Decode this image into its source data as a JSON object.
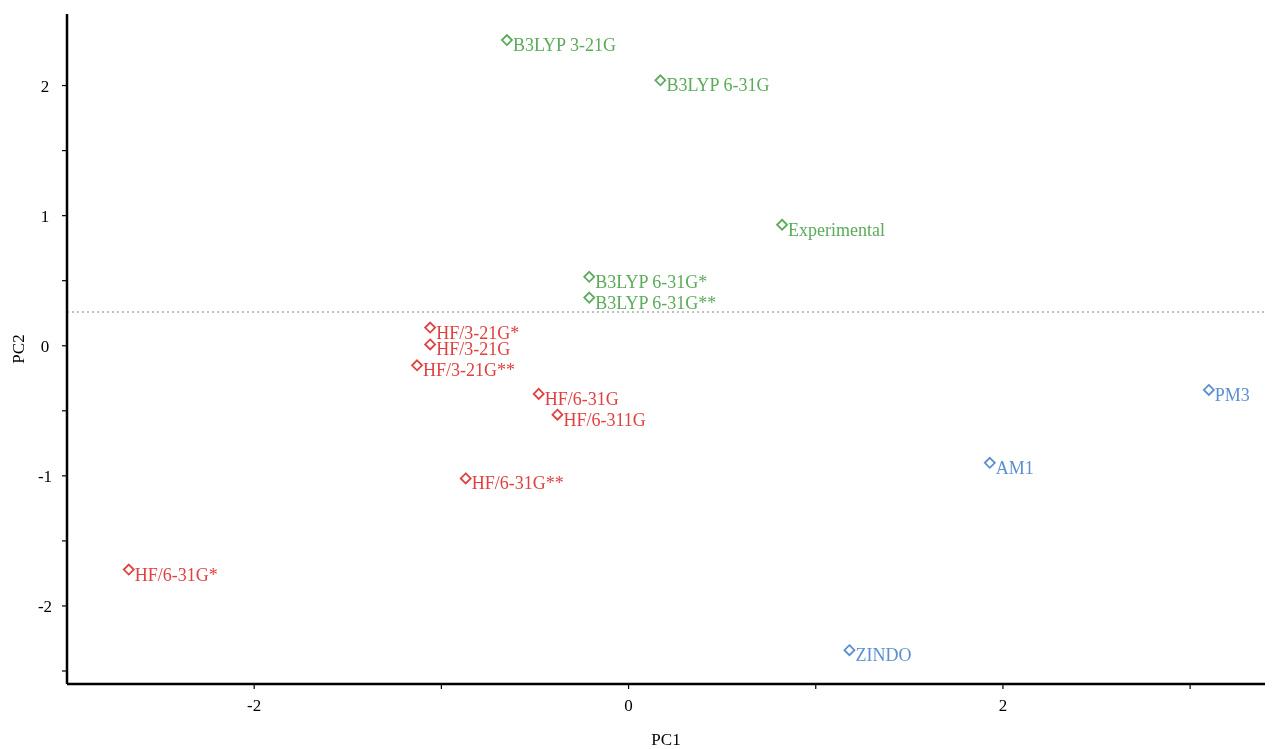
{
  "chart_data": {
    "type": "scatter",
    "xlabel": "PC1",
    "ylabel": "PC2",
    "xlim": [
      -3,
      3.4
    ],
    "ylim": [
      -2.6,
      2.55
    ],
    "xticks": [
      -2,
      {
        "value": -1,
        "label": null
      },
      0,
      {
        "value": 1,
        "label": null
      },
      2,
      {
        "value": 3,
        "label": null
      }
    ],
    "yticks": [
      {
        "value": -2.5,
        "label": null
      },
      -2,
      {
        "value": -1.5,
        "label": null
      },
      -1,
      {
        "value": -0.5,
        "label": null
      },
      0,
      {
        "value": 0.5,
        "label": null
      },
      1,
      {
        "value": 1.5,
        "label": null
      },
      2
    ],
    "marker": "diamond",
    "ref_lines": [
      {
        "axis": "y",
        "value": 0.26,
        "color": "#aaaaaa",
        "line_style": "dotted"
      }
    ],
    "series": [
      {
        "color": "#5aab5a",
        "x": [
          -0.65,
          0.17,
          0.82,
          -0.21,
          -0.21
        ],
        "values": [
          2.35,
          2.04,
          0.93,
          0.53,
          0.37
        ]
      },
      {
        "color": "#e04040",
        "x": [
          -1.06,
          -1.06,
          -1.13,
          -0.48,
          -0.38,
          -0.87,
          -2.67
        ],
        "values": [
          0.14,
          0.01,
          -0.15,
          -0.37,
          -0.53,
          -1.02,
          -1.72
        ]
      },
      {
        "color": "#5b8fd0",
        "x": [
          3.1,
          1.93,
          1.18
        ],
        "values": [
          -0.34,
          -0.9,
          -2.34
        ]
      }
    ],
    "annotations": [
      {
        "text": "B3LYP 3-21G",
        "x": -0.65,
        "y": 2.35
      },
      {
        "text": "B3LYP 6-31G",
        "x": 0.17,
        "y": 2.04
      },
      {
        "text": "Experimental",
        "x": 0.82,
        "y": 0.93
      },
      {
        "text": "B3LYP 6-31G*",
        "x": -0.21,
        "y": 0.53
      },
      {
        "text": "B3LYP 6-31G**",
        "x": -0.21,
        "y": 0.37
      },
      {
        "text": "HF/3-21G*",
        "x": -1.06,
        "y": 0.14
      },
      {
        "text": "HF/3-21G",
        "x": -1.06,
        "y": 0.01
      },
      {
        "text": "HF/3-21G**",
        "x": -1.13,
        "y": -0.15
      },
      {
        "text": "HF/6-31G",
        "x": -0.48,
        "y": -0.37
      },
      {
        "text": "HF/6-311G",
        "x": -0.38,
        "y": -0.53
      },
      {
        "text": "HF/6-31G**",
        "x": -0.87,
        "y": -1.02
      },
      {
        "text": "HF/6-31G*",
        "x": -2.67,
        "y": -1.72
      },
      {
        "text": "PM3",
        "x": 3.1,
        "y": -0.34
      },
      {
        "text": "AM1",
        "x": 1.93,
        "y": -0.9
      },
      {
        "text": "ZINDO",
        "x": 1.18,
        "y": -2.34
      }
    ]
  }
}
